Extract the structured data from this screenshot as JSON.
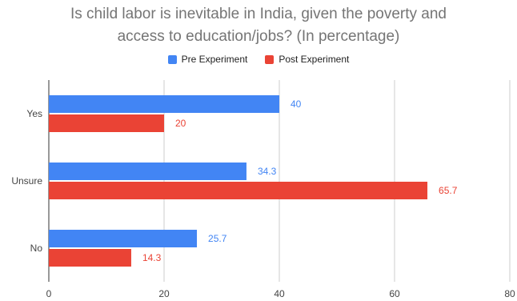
{
  "chart_data": {
    "type": "bar",
    "orientation": "horizontal",
    "title_line1": "Is child labor is inevitable in India, given the poverty and",
    "title_line2": "access to education/jobs? (In percentage)",
    "categories": [
      "Yes",
      "Unsure",
      "No"
    ],
    "series": [
      {
        "name": "Pre Experiment",
        "values": [
          40,
          34.3,
          25.7
        ],
        "color": "#4285f4"
      },
      {
        "name": "Post Experiment",
        "values": [
          20,
          65.7,
          14.3
        ],
        "color": "#ea4335"
      }
    ],
    "xlim": [
      0,
      80
    ],
    "xticks": [
      0,
      20,
      40,
      60,
      80
    ],
    "grid": true,
    "legend_position": "top"
  }
}
